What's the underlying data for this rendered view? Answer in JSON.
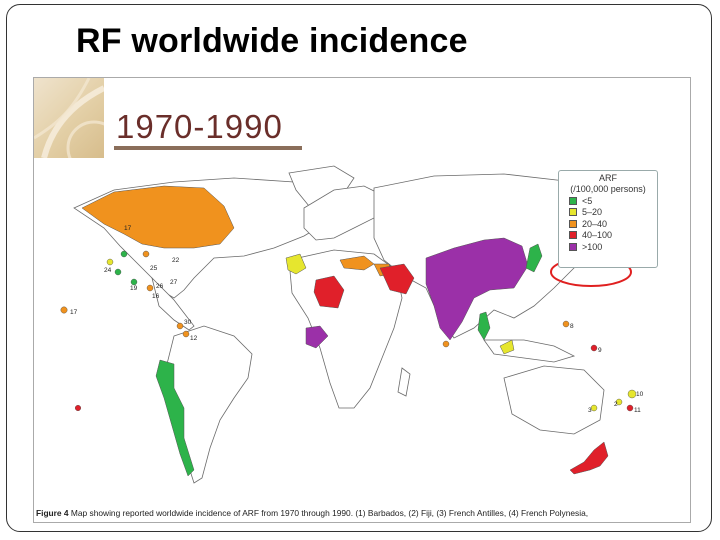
{
  "slide": {
    "title": "RF worldwide incidence"
  },
  "figure": {
    "period": "1970-1990",
    "caption_prefix": "Figure 4",
    "caption_text": "Map showing reported worldwide incidence of ARF from 1970 through 1990.",
    "caption_notes": "(1) Barbados, (2) Fiji, (3) French Antilles, (4) French Polynesia,"
  },
  "legend": {
    "title_line1": "ARF",
    "title_line2": "(/100,000 persons)",
    "items": [
      {
        "label": "<5",
        "color": "#2db34a"
      },
      {
        "label": "5–20",
        "color": "#e6e62e"
      },
      {
        "label": "20–40",
        "color": "#f0921e"
      },
      {
        "label": "40–100",
        "color": "#e0202a"
      },
      {
        "label": ">100",
        "color": "#9b30a8"
      }
    ],
    "highlight_color": "#e02020"
  },
  "map_labels": [
    {
      "text": "17"
    },
    {
      "text": "24"
    },
    {
      "text": "25"
    },
    {
      "text": "19"
    },
    {
      "text": "26"
    },
    {
      "text": "27"
    },
    {
      "text": "16"
    },
    {
      "text": "30"
    },
    {
      "text": "12"
    },
    {
      "text": "22"
    },
    {
      "text": "17"
    },
    {
      "text": "8"
    },
    {
      "text": "10"
    },
    {
      "text": "9"
    },
    {
      "text": "2"
    },
    {
      "text": "3"
    },
    {
      "text": "11"
    }
  ]
}
